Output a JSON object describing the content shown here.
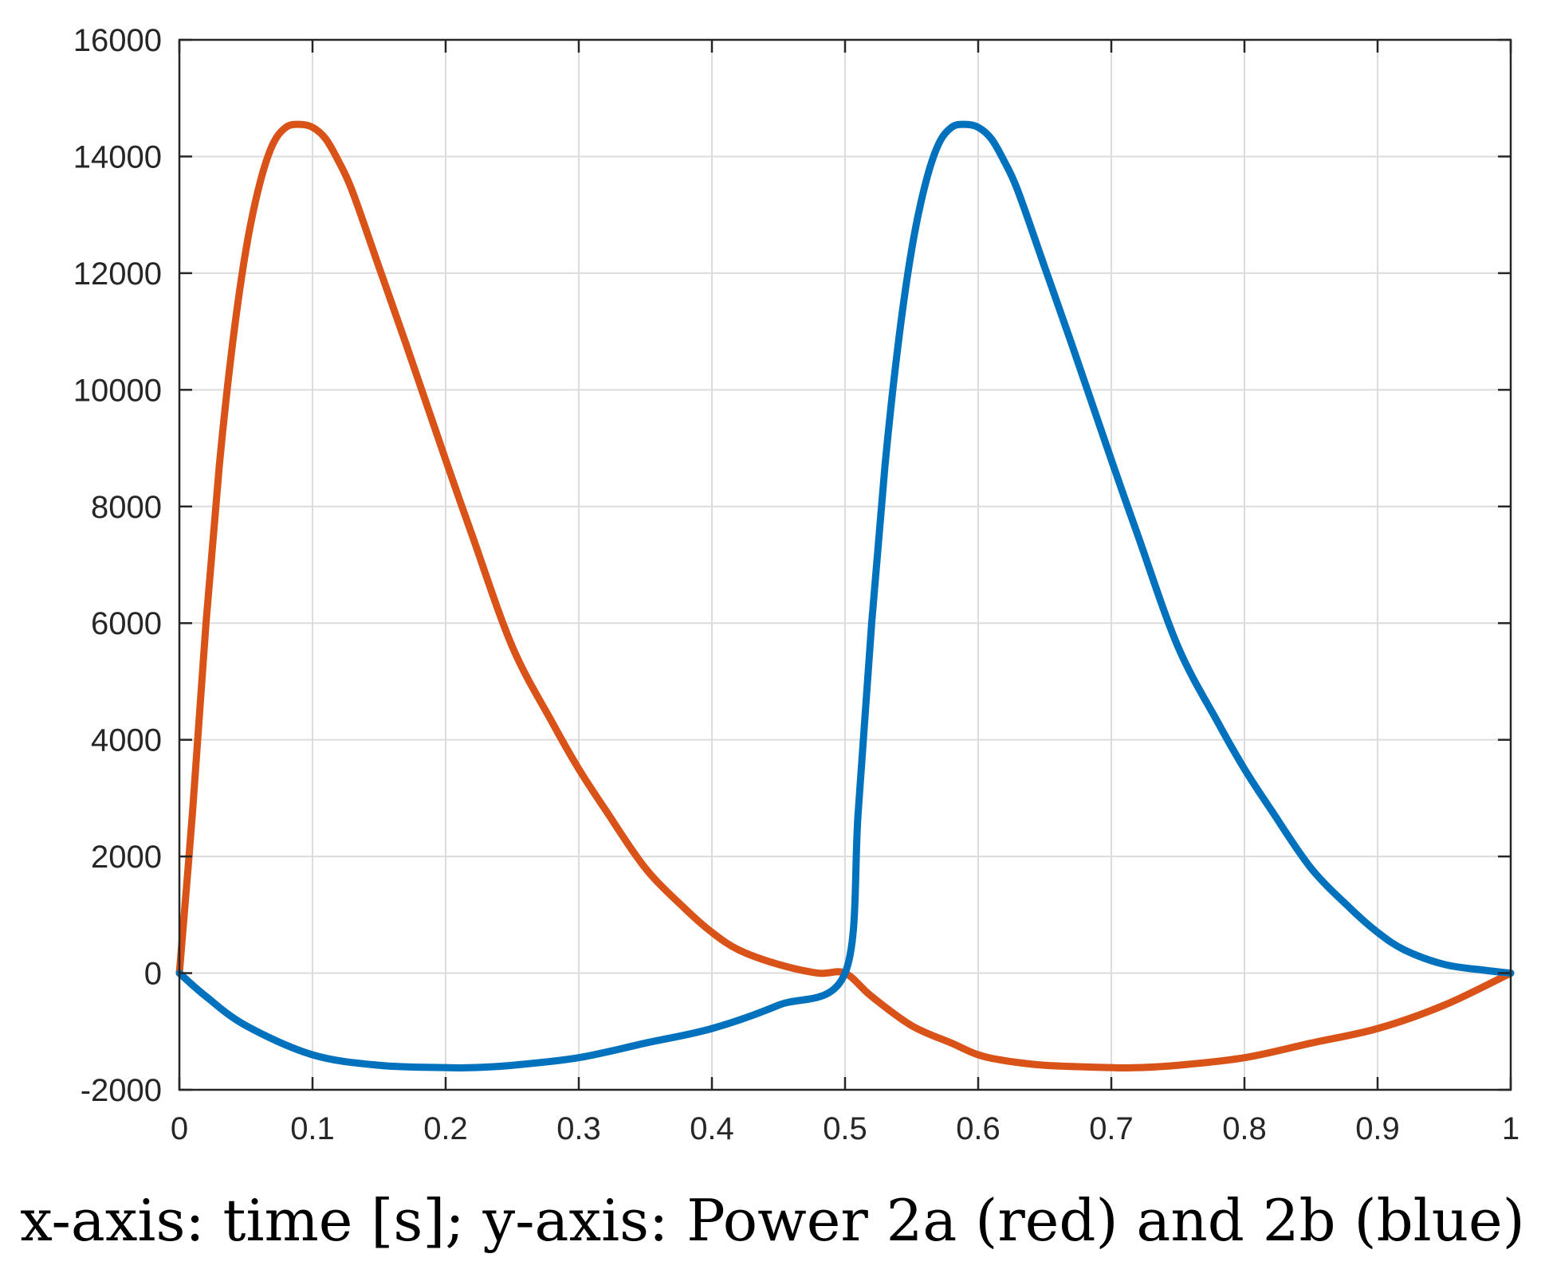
{
  "chart_data": {
    "type": "line",
    "title": "",
    "xlabel": "",
    "ylabel": "",
    "caption": "x-axis: time [s]; y-axis: Power 2a (red) and 2b (blue)",
    "xlim": [
      0,
      1
    ],
    "ylim": [
      -2000,
      16000
    ],
    "xticks": [
      0,
      0.1,
      0.2,
      0.3,
      0.4,
      0.5,
      0.6,
      0.7,
      0.8,
      0.9,
      1
    ],
    "xtick_labels": [
      "0",
      "0.1",
      "0.2",
      "0.3",
      "0.4",
      "0.5",
      "0.6",
      "0.7",
      "0.8",
      "0.9",
      "1"
    ],
    "yticks": [
      -2000,
      0,
      2000,
      4000,
      6000,
      8000,
      10000,
      12000,
      14000,
      16000
    ],
    "ytick_labels": [
      "-2000",
      "0",
      "2000",
      "4000",
      "6000",
      "8000",
      "10000",
      "12000",
      "14000",
      "16000"
    ],
    "grid": true,
    "series": [
      {
        "name": "Power 2a (red)",
        "color": "#D95319",
        "x": [
          0,
          0.01,
          0.02,
          0.03,
          0.04,
          0.05,
          0.06,
          0.07,
          0.08,
          0.09,
          0.1,
          0.11,
          0.12,
          0.13,
          0.15,
          0.17,
          0.2,
          0.22,
          0.25,
          0.28,
          0.3,
          0.32,
          0.35,
          0.38,
          0.4,
          0.42,
          0.45,
          0.48,
          0.5,
          0.52,
          0.55,
          0.58,
          0.6,
          0.62,
          0.65,
          0.7,
          0.72,
          0.75,
          0.8,
          0.85,
          0.9,
          0.95,
          1.0
        ],
        "y": [
          0,
          2800,
          6000,
          8700,
          10800,
          12400,
          13500,
          14200,
          14500,
          14550,
          14500,
          14300,
          13900,
          13400,
          12100,
          10800,
          8800,
          7500,
          5600,
          4300,
          3500,
          2800,
          1800,
          1100,
          700,
          400,
          150,
          0,
          0,
          -400,
          -900,
          -1200,
          -1400,
          -1500,
          -1580,
          -1620,
          -1620,
          -1580,
          -1450,
          -1200,
          -950,
          -550,
          0
        ]
      },
      {
        "name": "Power 2b (blue)",
        "color": "#0072BD",
        "x": [
          0,
          0.02,
          0.05,
          0.1,
          0.15,
          0.2,
          0.22,
          0.25,
          0.3,
          0.35,
          0.4,
          0.45,
          0.5,
          0.51,
          0.52,
          0.53,
          0.54,
          0.55,
          0.56,
          0.57,
          0.58,
          0.59,
          0.6,
          0.61,
          0.62,
          0.63,
          0.65,
          0.67,
          0.7,
          0.72,
          0.75,
          0.78,
          0.8,
          0.82,
          0.85,
          0.88,
          0.9,
          0.92,
          0.95,
          0.98,
          1.0
        ],
        "y": [
          0,
          -400,
          -900,
          -1400,
          -1580,
          -1620,
          -1620,
          -1580,
          -1450,
          -1200,
          -950,
          -550,
          0,
          2800,
          6000,
          8700,
          10800,
          12400,
          13500,
          14200,
          14500,
          14550,
          14500,
          14300,
          13900,
          13400,
          12100,
          10800,
          8800,
          7500,
          5600,
          4300,
          3500,
          2800,
          1800,
          1100,
          700,
          400,
          150,
          50,
          0
        ]
      }
    ]
  }
}
